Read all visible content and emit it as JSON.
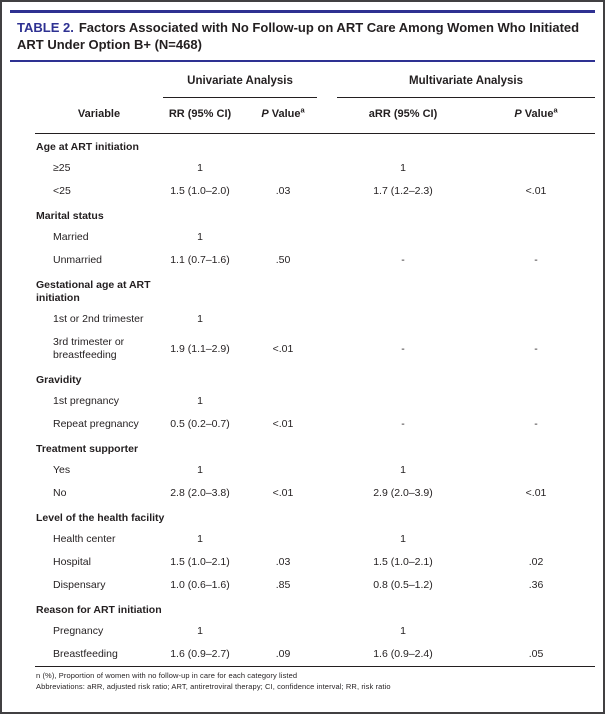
{
  "title": {
    "label": "TABLE 2.",
    "text": "Factors Associated with No Follow-up on ART Care Among Women Who Initiated ART Under Option B+ (N=468)"
  },
  "header": {
    "variable_col": "Variable",
    "univariate_group": "Univariate Analysis",
    "multivariate_group": "Multivariate Analysis",
    "rr_col": "RR (95% CI)",
    "arr_col": "aRR (95% CI)",
    "p": {
      "p": "P",
      "value": "Value",
      "sup": "a"
    }
  },
  "rows": [
    {
      "type": "category",
      "label": "Age at ART initiation"
    },
    {
      "type": "item",
      "label": "≥25",
      "cells": [
        "1",
        "",
        "1",
        ""
      ]
    },
    {
      "type": "item",
      "label": "<25",
      "cells": [
        "1.5 (1.0–2.0)",
        ".03",
        "1.7 (1.2–2.3)",
        "<.01"
      ]
    },
    {
      "type": "category",
      "label": "Marital status"
    },
    {
      "type": "item",
      "label": "Married",
      "cells": [
        "1",
        "",
        "",
        ""
      ]
    },
    {
      "type": "item",
      "label": "Unmarried",
      "cells": [
        "1.1 (0.7–1.6)",
        ".50",
        "-",
        "-"
      ]
    },
    {
      "type": "category",
      "label": "Gestational age at ART initiation"
    },
    {
      "type": "item",
      "label": "1st or 2nd trimester",
      "cells": [
        "1",
        "",
        "",
        ""
      ]
    },
    {
      "type": "item",
      "label": "3rd trimester or breastfeeding",
      "cells": [
        "1.9 (1.1–2.9)",
        "<.01",
        "-",
        "-"
      ]
    },
    {
      "type": "category",
      "label": "Gravidity"
    },
    {
      "type": "item",
      "label": "1st pregnancy",
      "cells": [
        "1",
        "",
        "",
        ""
      ]
    },
    {
      "type": "item",
      "label": "Repeat pregnancy",
      "cells": [
        "0.5 (0.2–0.7)",
        "<.01",
        "-",
        "-"
      ]
    },
    {
      "type": "category",
      "label": "Treatment supporter"
    },
    {
      "type": "item",
      "label": "Yes",
      "cells": [
        "1",
        "",
        "1",
        ""
      ]
    },
    {
      "type": "item",
      "label": "No",
      "cells": [
        "2.8 (2.0–3.8)",
        "<.01",
        "2.9 (2.0–3.9)",
        "<.01"
      ]
    },
    {
      "type": "category",
      "label": "Level of the health facility"
    },
    {
      "type": "item",
      "label": "Health center",
      "cells": [
        "1",
        "",
        "1",
        ""
      ]
    },
    {
      "type": "item",
      "label": "Hospital",
      "cells": [
        "1.5 (1.0–2.1)",
        ".03",
        "1.5 (1.0–2.1)",
        ".02"
      ]
    },
    {
      "type": "item",
      "label": "Dispensary",
      "cells": [
        "1.0 (0.6–1.6)",
        ".85",
        "0.8 (0.5–1.2)",
        ".36"
      ]
    },
    {
      "type": "category",
      "label": "Reason for ART initiation"
    },
    {
      "type": "item",
      "label": "Pregnancy",
      "cells": [
        "1",
        "",
        "1",
        ""
      ]
    },
    {
      "type": "item",
      "label": "Breastfeeding",
      "cells": [
        "1.6 (0.9–2.7)",
        ".09",
        "1.6 (0.9–2.4)",
        ".05"
      ]
    }
  ],
  "footnotes": [
    "n (%), Proportion of women with no follow-up in care for each category listed",
    "Abbreviations: aRR, adjusted risk ratio; ART, antiretroviral therapy; CI, confidence interval; RR, risk ratio"
  ],
  "colors": {
    "accent_navy": "#2e3192",
    "text": "#231f20"
  }
}
